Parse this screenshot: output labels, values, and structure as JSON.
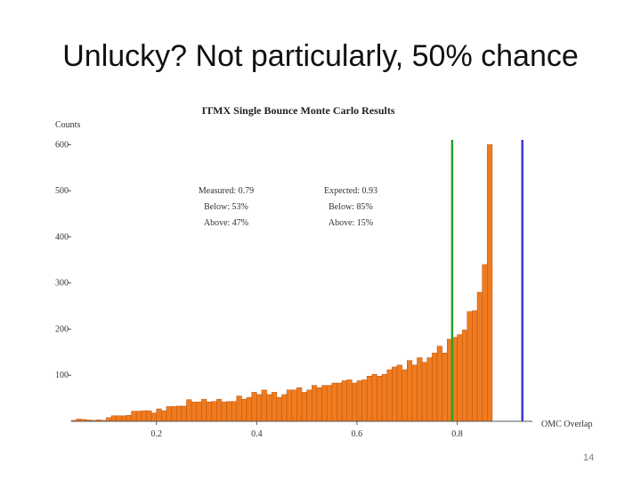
{
  "slide": {
    "title": "Unlucky? Not particularly, 50% chance",
    "page_number": "14"
  },
  "chart_data": {
    "type": "bar",
    "title": "ITMX Single Bounce Monte Carlo Results",
    "xlabel": "OMC Overlap",
    "ylabel": "Counts",
    "xlim": [
      0.03,
      0.95
    ],
    "ylim": [
      0,
      620
    ],
    "xticks": [
      0.2,
      0.4,
      0.6,
      0.8
    ],
    "xtick_labels": [
      "0.2",
      "0.4",
      "0.6",
      "0.8"
    ],
    "yticks": [
      100,
      200,
      300,
      400,
      500,
      600
    ],
    "ytick_labels": [
      "100",
      "200",
      "300",
      "400",
      "500",
      "600"
    ],
    "bin_width": 0.01,
    "bin_start": 0.03,
    "values": [
      2,
      5,
      4,
      3,
      2,
      3,
      2,
      8,
      12,
      12,
      12,
      13,
      22,
      22,
      23,
      23,
      18,
      27,
      23,
      32,
      32,
      33,
      33,
      47,
      42,
      42,
      48,
      42,
      43,
      48,
      42,
      43,
      43,
      55,
      48,
      52,
      63,
      58,
      68,
      58,
      63,
      52,
      58,
      68,
      68,
      73,
      63,
      68,
      78,
      73,
      78,
      78,
      83,
      83,
      88,
      90,
      83,
      88,
      90,
      98,
      102,
      98,
      102,
      112,
      118,
      122,
      112,
      132,
      122,
      138,
      128,
      138,
      148,
      163,
      148,
      178,
      182,
      188,
      198,
      238,
      240,
      280,
      340,
      600
    ],
    "colors": {
      "bar": "#f07b1f",
      "bar_edge": "#b8540f"
    },
    "vertical_lines": [
      {
        "x": 0.79,
        "color": "#2aa02a"
      },
      {
        "x": 0.93,
        "color": "#3b3bd6"
      }
    ],
    "annotations": {
      "measured": [
        "Measured: 0.79",
        "Below: 53%",
        "Above: 47%"
      ],
      "expected": [
        "Expected: 0.93",
        "Below: 85%",
        "Above: 15%"
      ]
    }
  }
}
